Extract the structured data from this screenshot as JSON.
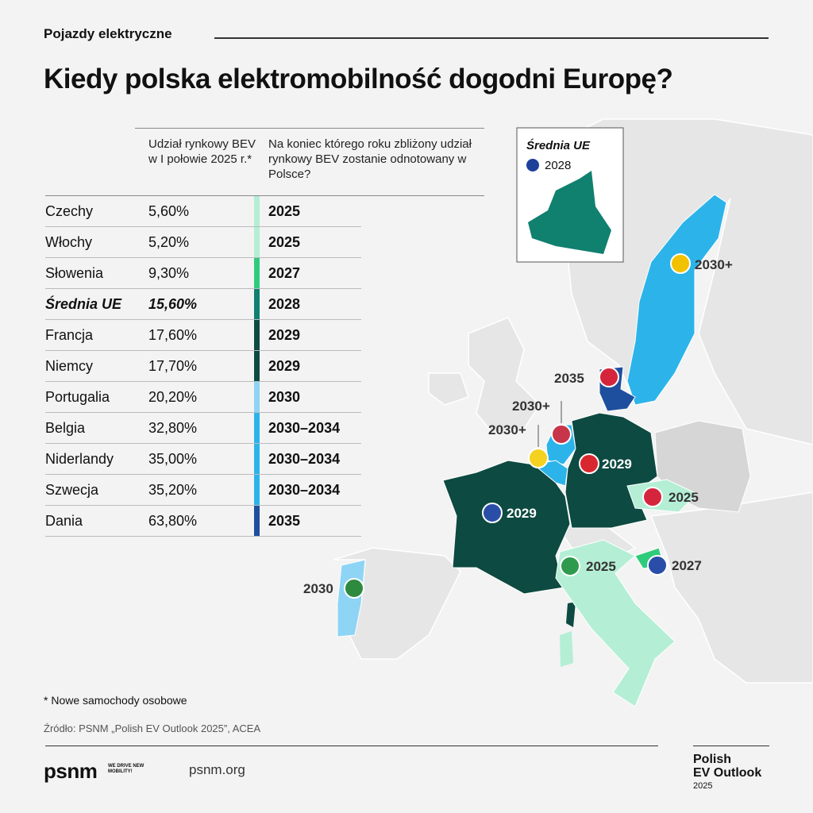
{
  "header": {
    "category": "Pojazdy elektryczne",
    "title": "Kiedy polska elektromobilność dogodni Europę?"
  },
  "table": {
    "columns": [
      "Udział rynkowy BEV w I połowie 2025 r.*",
      "Na koniec którego roku zbliżony udział rynkowy BEV zostanie odnotowany w Polsce?"
    ],
    "rows": [
      {
        "country": "Czechy",
        "share": "5,60%",
        "year": "2025",
        "color": "#b4efd5"
      },
      {
        "country": "Włochy",
        "share": "5,20%",
        "year": "2025",
        "color": "#b4efd5"
      },
      {
        "country": "Słowenia",
        "share": "9,30%",
        "year": "2027",
        "color": "#2fcb7c"
      },
      {
        "country": "Średnia UE",
        "share": "15,60%",
        "year": "2028",
        "color": "#10806f",
        "emphasis": true
      },
      {
        "country": "Francja",
        "share": "17,60%",
        "year": "2029",
        "color": "#0d4a41"
      },
      {
        "country": "Niemcy",
        "share": "17,70%",
        "year": "2029",
        "color": "#0d4a41"
      },
      {
        "country": "Portugalia",
        "share": "20,20%",
        "year": "2030",
        "color": "#8ed4f5"
      },
      {
        "country": "Belgia",
        "share": "32,80%",
        "year": "2030–2034",
        "color": "#2cb4ea"
      },
      {
        "country": "Niderlandy",
        "share": "35,00%",
        "year": "2030–2034",
        "color": "#2cb4ea"
      },
      {
        "country": "Szwecja",
        "share": "35,20%",
        "year": "2030–2034",
        "color": "#2cb4ea"
      },
      {
        "country": "Dania",
        "share": "63,80%",
        "year": "2035",
        "color": "#1e4f9e"
      }
    ]
  },
  "inset": {
    "title": "Średnia UE",
    "year": "2028"
  },
  "map": {
    "labels": [
      "2030+",
      "2035",
      "2030+",
      "2030+",
      "2029",
      "2029",
      "2025",
      "2025",
      "2027",
      "2030"
    ]
  },
  "footnote": "* Nowe samochody osobowe",
  "source": "Źródło: PSNM „Polish EV Outlook 2025”, ACEA",
  "footer": {
    "logo": "psnm",
    "tagline": "WE DRIVE NEW MOBILITY!",
    "url": "psnm.org",
    "brand": [
      "Polish",
      "EV Outlook",
      "2025"
    ]
  }
}
